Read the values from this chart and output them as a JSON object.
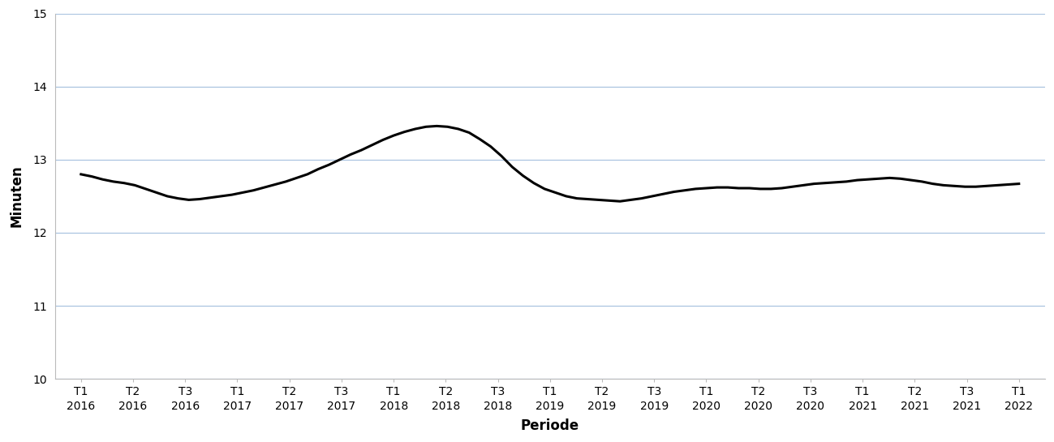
{
  "x_labels_line1": [
    "T1",
    "T2",
    "T3",
    "T1",
    "T2",
    "T3",
    "T1",
    "T2",
    "T3",
    "T1",
    "T2",
    "T3",
    "T1",
    "T2",
    "T3",
    "T1",
    "T2",
    "T3",
    "T1"
  ],
  "x_labels_line2": [
    "2016",
    "2016",
    "2016",
    "2017",
    "2017",
    "2017",
    "2018",
    "2018",
    "2018",
    "2019",
    "2019",
    "2019",
    "2020",
    "2020",
    "2020",
    "2021",
    "2021",
    "2021",
    "2022"
  ],
  "y_values": [
    12.8,
    12.77,
    12.73,
    12.7,
    12.68,
    12.65,
    12.6,
    12.55,
    12.5,
    12.47,
    12.45,
    12.46,
    12.48,
    12.5,
    12.52,
    12.55,
    12.58,
    12.62,
    12.66,
    12.7,
    12.75,
    12.8,
    12.87,
    12.93,
    13.0,
    13.07,
    13.13,
    13.2,
    13.27,
    13.33,
    13.38,
    13.42,
    13.45,
    13.46,
    13.45,
    13.42,
    13.37,
    13.28,
    13.18,
    13.05,
    12.9,
    12.78,
    12.68,
    12.6,
    12.55,
    12.5,
    12.47,
    12.46,
    12.45,
    12.44,
    12.43,
    12.45,
    12.47,
    12.5,
    12.53,
    12.56,
    12.58,
    12.6,
    12.61,
    12.62,
    12.62,
    12.61,
    12.61,
    12.6,
    12.6,
    12.61,
    12.63,
    12.65,
    12.67,
    12.68,
    12.69,
    12.7,
    12.72,
    12.73,
    12.74,
    12.75,
    12.74,
    12.72,
    12.7,
    12.67,
    12.65,
    12.64,
    12.63,
    12.63,
    12.64,
    12.65,
    12.66,
    12.67
  ],
  "xlabel": "Periode",
  "ylabel": "Minuten",
  "ylim": [
    10,
    15
  ],
  "yticks": [
    10,
    11,
    12,
    13,
    14,
    15
  ],
  "line_color": "#000000",
  "line_width": 2.2,
  "grid_color": "#aac4e0",
  "background_color": "#ffffff",
  "tick_fontsize": 10,
  "label_fontsize": 12
}
